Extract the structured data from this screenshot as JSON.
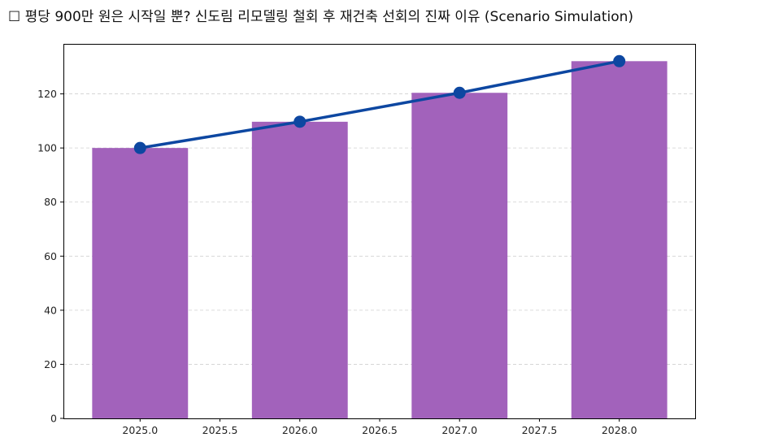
{
  "chart_data": {
    "type": "bar",
    "title": "☐ 평당 900만 원은 시작일 뿐? 신도림 리모델링 철회 후 재건축 선회의 진짜 이유 (Scenario Simulation)",
    "xlabel": "",
    "ylabel": "",
    "x": [
      2025,
      2026,
      2027,
      2028
    ],
    "series": [
      {
        "kind": "bar",
        "values": [
          100,
          109.7,
          120.4,
          132.1
        ],
        "color": "#a262bb"
      },
      {
        "kind": "line",
        "values": [
          100,
          109.7,
          120.4,
          132.1
        ],
        "color": "#0d47a1",
        "marker": "circle"
      }
    ],
    "xlim": [
      2024.52,
      2028.48
    ],
    "ylim": [
      0,
      138.5
    ],
    "xticks": [
      "2025.0",
      "2025.5",
      "2026.0",
      "2026.5",
      "2027.0",
      "2027.5",
      "2028.0"
    ],
    "xtick_values": [
      2025,
      2025.5,
      2026,
      2026.5,
      2027,
      2027.5,
      2028
    ],
    "yticks": [
      "0",
      "20",
      "40",
      "60",
      "80",
      "100",
      "120"
    ],
    "ytick_values": [
      0,
      20,
      40,
      60,
      80,
      100,
      120
    ],
    "bar_width": 0.6,
    "grid": "y-dashed"
  }
}
